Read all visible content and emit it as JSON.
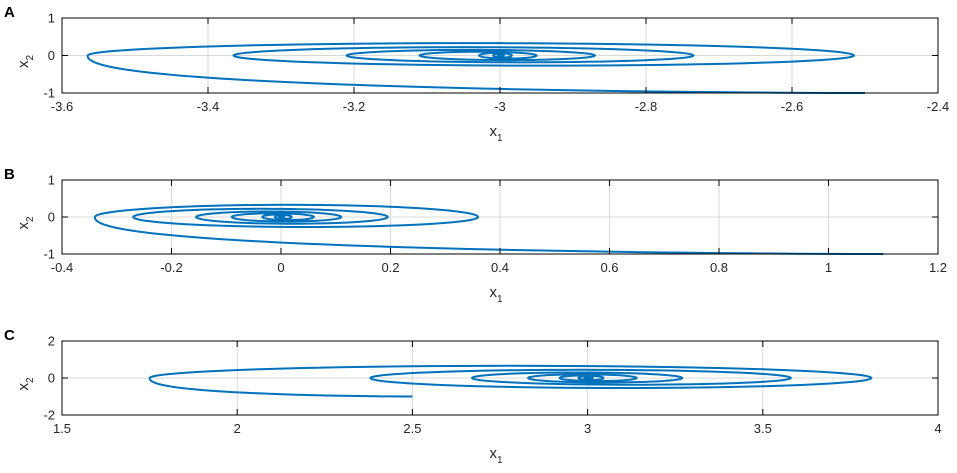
{
  "chart_data": [
    {
      "panel": "A",
      "type": "line",
      "xlabel": "x",
      "xlabel_sub": "1",
      "ylabel": "x",
      "ylabel_sub": "2",
      "xlim": [
        -3.6,
        -2.4
      ],
      "ylim": [
        -1,
        1
      ],
      "xticks": [
        "-3.6",
        "-3.4",
        "-3.2",
        "-3",
        "-2.8",
        "-2.6",
        "-2.4"
      ],
      "yticks": [
        "-1",
        "0",
        "1"
      ],
      "grid": true,
      "color": "#0072BD",
      "trajectory": {
        "start": [
          -2.5,
          -1.0
        ],
        "equilibrium": [
          -3.0,
          0.0
        ],
        "decay_per_halfturn": 0.57
      },
      "turning_points_x": [
        -3.565,
        -2.515,
        -3.365,
        -2.735,
        -3.21,
        -2.87,
        -3.11,
        -2.95
      ]
    },
    {
      "panel": "B",
      "type": "line",
      "xlabel": "x",
      "xlabel_sub": "1",
      "ylabel": "x",
      "ylabel_sub": "2",
      "xlim": [
        -0.4,
        1.2
      ],
      "ylim": [
        -1,
        1
      ],
      "xticks": [
        "-0.4",
        "-0.2",
        "0",
        "0.2",
        "0.4",
        "0.6",
        "0.8",
        "1",
        "1.2"
      ],
      "yticks": [
        "-1",
        "0",
        "1"
      ],
      "grid": true,
      "color": "#0072BD",
      "trajectory": {
        "start": [
          1.1,
          -1.0
        ],
        "equilibrium": [
          0.0,
          0.0
        ],
        "decay_per_halfturn": 0.57
      },
      "turning_points_x": [
        -0.34,
        0.36,
        -0.27,
        0.195,
        -0.155,
        0.11,
        -0.09,
        0.06
      ]
    },
    {
      "panel": "C",
      "type": "line",
      "xlabel": "x",
      "xlabel_sub": "1",
      "ylabel": "x",
      "ylabel_sub": "2",
      "xlim": [
        1.5,
        4
      ],
      "ylim": [
        -2,
        2
      ],
      "xticks": [
        "1.5",
        "2",
        "2.5",
        "3",
        "3.5",
        "4"
      ],
      "yticks": [
        "-2",
        "0",
        "2"
      ],
      "grid": true,
      "color": "#0072BD",
      "trajectory": {
        "start": [
          2.5,
          -1.0
        ],
        "equilibrium": [
          3.0,
          0.0
        ],
        "decay_per_halfturn": 0.57
      },
      "turning_points_x": [
        1.75,
        3.81,
        2.38,
        3.58,
        2.67,
        3.27,
        2.83,
        3.14
      ]
    }
  ]
}
